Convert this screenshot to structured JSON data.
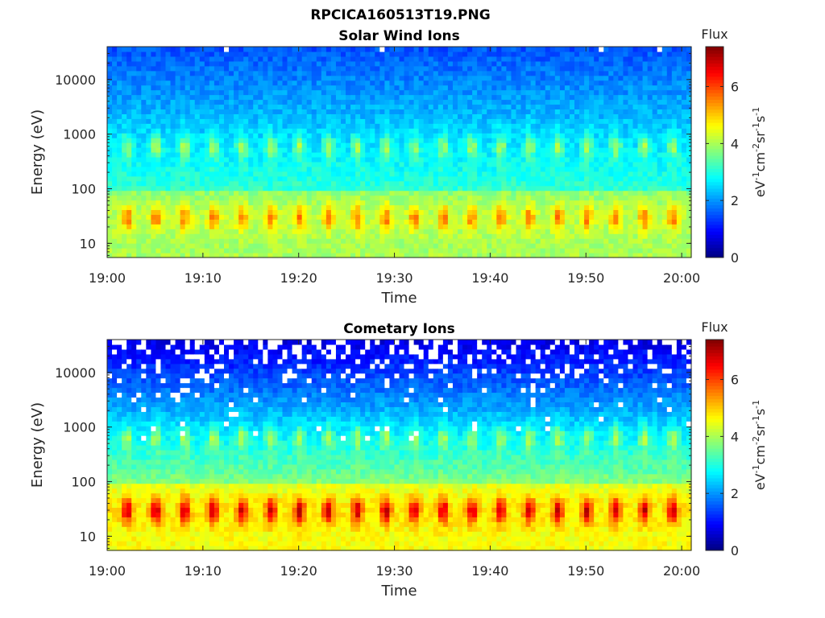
{
  "figure_title": "RPCICA160513T19.PNG",
  "chart_data": [
    {
      "type": "heatmap",
      "title": "Solar Wind Ions",
      "xlabel": "Time",
      "ylabel": "Energy (eV)",
      "x_range": [
        "19:00",
        "20:01"
      ],
      "x_ticks": [
        "19:00",
        "19:10",
        "19:20",
        "19:30",
        "19:40",
        "19:50",
        "20:00"
      ],
      "y_scale": "log",
      "y_range": [
        5.5,
        40000
      ],
      "y_ticks": [
        {
          "value": 10,
          "label": "10"
        },
        {
          "value": 100,
          "label": "100"
        },
        {
          "value": 1000,
          "label": "1000"
        },
        {
          "value": 10000,
          "label": "10000"
        }
      ],
      "colorbar": {
        "label": "Flux",
        "units": "eV<sup>-1</sup>cm<sup>-2</sup>sr<sup>-1</sup>s<sup>-1</sup>",
        "range": [
          0,
          7.4
        ],
        "ticks": [
          "0",
          "2",
          "4",
          "6"
        ],
        "colormap": "jet"
      },
      "pulse_period_min": 3.0,
      "features": [
        {
          "energy_center_eV": 30,
          "peak_flux": 5.3,
          "background_flux": 4.0,
          "description_visible": false
        },
        {
          "energy_center_eV": 600,
          "peak_flux": 3.9,
          "background_flux": 2.8,
          "description_visible": false
        }
      ],
      "high_energy_background_flux": 1.5,
      "grid": false
    },
    {
      "type": "heatmap",
      "title": "Cometary Ions",
      "xlabel": "Time",
      "ylabel": "Energy (eV)",
      "x_range": [
        "19:00",
        "20:01"
      ],
      "x_ticks": [
        "19:00",
        "19:10",
        "19:20",
        "19:30",
        "19:40",
        "19:50",
        "20:00"
      ],
      "y_scale": "log",
      "y_range": [
        5.5,
        40000
      ],
      "y_ticks": [
        {
          "value": 10,
          "label": "10"
        },
        {
          "value": 100,
          "label": "100"
        },
        {
          "value": 1000,
          "label": "1000"
        },
        {
          "value": 10000,
          "label": "10000"
        }
      ],
      "colorbar": {
        "label": "Flux",
        "units": "eV<sup>-1</sup>cm<sup>-2</sup>sr<sup>-1</sup>s<sup>-1</sup>",
        "range": [
          0,
          7.4
        ],
        "ticks": [
          "0",
          "2",
          "4",
          "6"
        ],
        "colormap": "jet"
      },
      "pulse_period_min": 3.0,
      "features": [
        {
          "energy_center_eV": 30,
          "peak_flux": 6.6,
          "background_flux": 4.6,
          "description_visible": false
        },
        {
          "energy_center_eV": 650,
          "peak_flux": 2.9,
          "background_flux": 1.9,
          "description_visible": false
        }
      ],
      "high_energy_background_flux": 0.7,
      "gaps_above_eV": 3000,
      "grid": false
    }
  ]
}
